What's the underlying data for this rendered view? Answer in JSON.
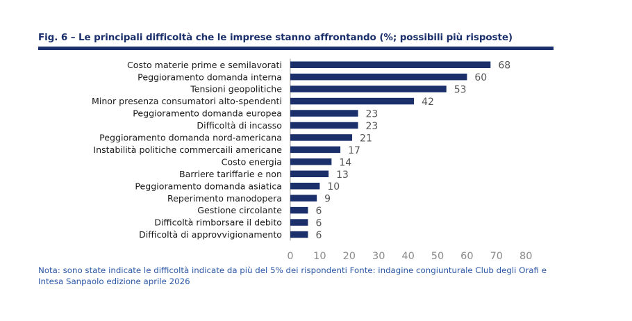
{
  "title": "Fig. 6 – Le principali difficoltà che le imprese stanno affrontando (%; possibili più risposte)",
  "note": "Nota: sono state indicate le difficoltà indicate da più del 5% dei rispondenti Fonte: indagine congiunturale Club degli Orafi e Intesa Sanpaolo edizione aprile 2026",
  "colors": {
    "bar": "#1b2f6b",
    "title": "#1b2f6b",
    "note": "#2b57a6",
    "axis_text": "#8a8a8a",
    "label_text": "#1a1a1a"
  },
  "chart_data": {
    "type": "bar",
    "orientation": "horizontal",
    "title": "Fig. 6 – Le principali difficoltà che le imprese stanno affrontando (%; possibili più risposte)",
    "categories": [
      "Costo materie prime e semilavorati",
      "Peggioramento domanda interna",
      "Tensioni geopolitiche",
      "Minor presenza consumatori alto-spendenti",
      "Peggioramento domanda europea",
      "Difficoltà di incasso",
      "Peggioramento domanda nord-americana",
      "Instabilità politiche commercaili americane",
      "Costo energia",
      "Barriere tariffarie e non",
      "Peggioramento domanda asiatica",
      "Reperimento manodopera",
      "Gestione circolante",
      "Difficoltà rimborsare il debito",
      "Difficoltà di approvvigionamento"
    ],
    "values": [
      68,
      60,
      53,
      42,
      23,
      23,
      21,
      17,
      14,
      13,
      10,
      9,
      6,
      6,
      6
    ],
    "xlim": [
      0,
      80
    ],
    "xticks": [
      0,
      10,
      20,
      30,
      40,
      50,
      60,
      70,
      80
    ],
    "grid": false,
    "data_labels": true
  }
}
